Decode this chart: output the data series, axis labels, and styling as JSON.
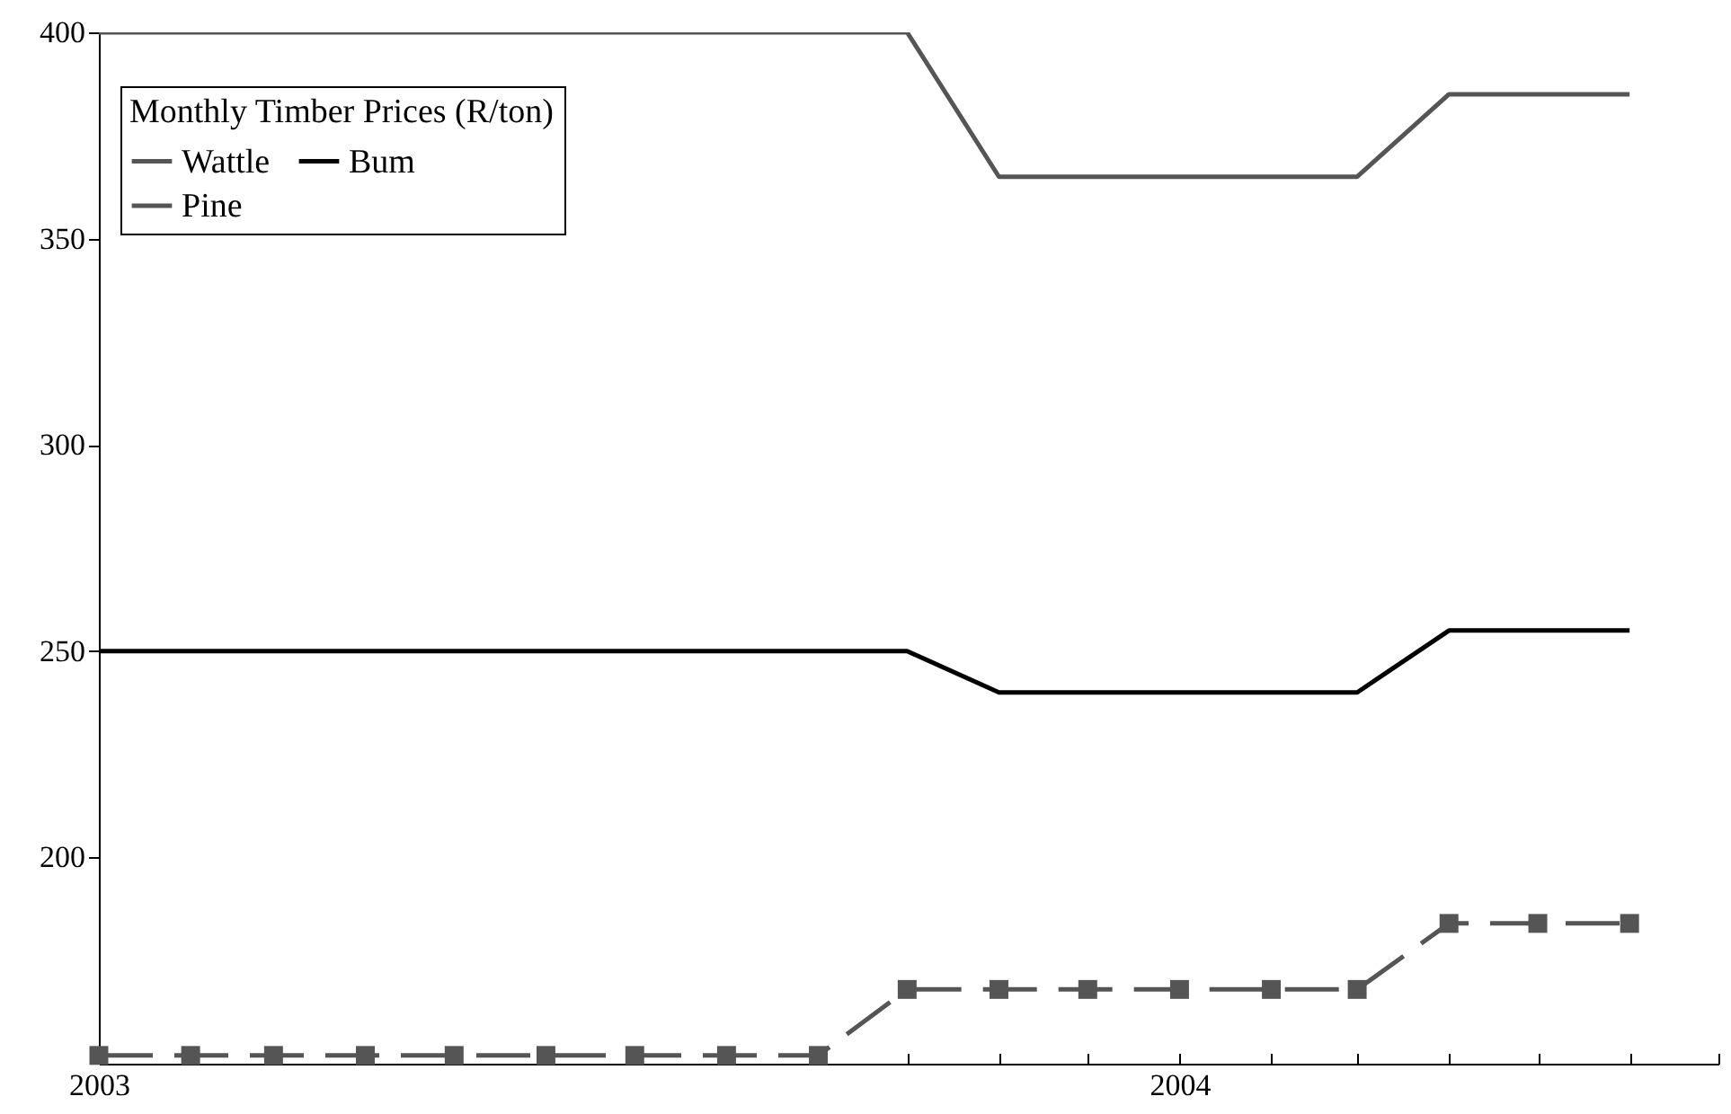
{
  "chart_data": {
    "type": "line",
    "legend_title": "Monthly Timber Prices (R/ton)",
    "legend": "top left",
    "grid": false,
    "x": [
      "2003-01",
      "2003-02",
      "2003-03",
      "2003-04",
      "2003-05",
      "2003-06",
      "2003-07",
      "2003-08",
      "2003-09",
      "2003-10",
      "2003-11",
      "2003-12",
      "2004-01",
      "2004-02",
      "2004-03",
      "2004-04",
      "2004-05",
      "2004-06"
    ],
    "xlim": [
      "2003-01",
      "2004-07"
    ],
    "xticks": [
      {
        "value": "2003-01",
        "label": "2003"
      },
      {
        "value": "2003-02",
        "label": null
      },
      {
        "value": "2003-03",
        "label": null
      },
      {
        "value": "2003-04",
        "label": null
      },
      {
        "value": "2003-05",
        "label": null
      },
      {
        "value": "2003-06",
        "label": null
      },
      {
        "value": "2003-07",
        "label": null
      },
      {
        "value": "2003-08",
        "label": null
      },
      {
        "value": "2003-09",
        "label": null
      },
      {
        "value": "2003-10",
        "label": null
      },
      {
        "value": "2003-11",
        "label": null
      },
      {
        "value": "2003-12",
        "label": null
      },
      {
        "value": "2004-01",
        "label": "2004"
      },
      {
        "value": "2004-02",
        "label": null
      },
      {
        "value": "2004-03",
        "label": null
      },
      {
        "value": "2004-04",
        "label": null
      },
      {
        "value": "2004-05",
        "label": null
      },
      {
        "value": "2004-06",
        "label": null
      },
      {
        "value": "2004-07",
        "label": null
      }
    ],
    "ylim": [
      150,
      400
    ],
    "yticks": [
      200,
      250,
      300,
      350,
      400
    ],
    "series": [
      {
        "name": "Wattle",
        "color": "#555555",
        "line_style": "solid",
        "values": [
          400,
          400,
          400,
          400,
          400,
          400,
          400,
          400,
          400,
          400,
          365,
          365,
          365,
          365,
          365,
          385,
          385,
          385
        ]
      },
      {
        "name": "Bum",
        "color": "#000000",
        "line_style": "solid",
        "values": [
          250,
          250,
          250,
          250,
          250,
          250,
          250,
          250,
          250,
          250,
          240,
          240,
          240,
          240,
          240,
          255,
          255,
          255
        ]
      },
      {
        "name": "Pine",
        "color": "#555555",
        "line_style": "dashed",
        "marker": "square",
        "values": [
          152,
          152,
          152,
          152,
          152,
          152,
          152,
          152,
          152,
          168,
          168,
          168,
          168,
          168,
          168,
          184,
          184,
          184
        ]
      }
    ]
  }
}
